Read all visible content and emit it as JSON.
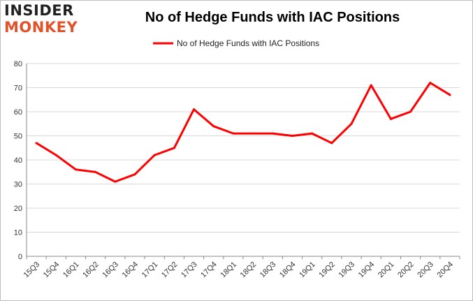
{
  "logo": {
    "line1": "INSIDER",
    "line2": "MONKEY"
  },
  "chart_data": {
    "type": "line",
    "title": "No of Hedge Funds with IAC Positions",
    "xlabel": "",
    "ylabel": "",
    "ylim": [
      0,
      80
    ],
    "yticks": [
      0,
      10,
      20,
      30,
      40,
      50,
      60,
      70,
      80
    ],
    "grid": true,
    "legend_position": "top-center",
    "categories": [
      "15Q3",
      "15Q4",
      "16Q1",
      "16Q2",
      "16Q3",
      "16Q4",
      "17Q1",
      "17Q2",
      "17Q3",
      "17Q4",
      "18Q1",
      "18Q2",
      "18Q3",
      "18Q4",
      "19Q1",
      "19Q2",
      "19Q3",
      "19Q4",
      "20Q1",
      "20Q2",
      "20Q3",
      "20Q4"
    ],
    "series": [
      {
        "name": "No of Hedge Funds with IAC Positions",
        "color": "#ff0000",
        "values": [
          47,
          42,
          36,
          35,
          31,
          34,
          42,
          45,
          61,
          54,
          51,
          51,
          51,
          50,
          51,
          47,
          55,
          71,
          57,
          60,
          72,
          67
        ]
      }
    ]
  }
}
